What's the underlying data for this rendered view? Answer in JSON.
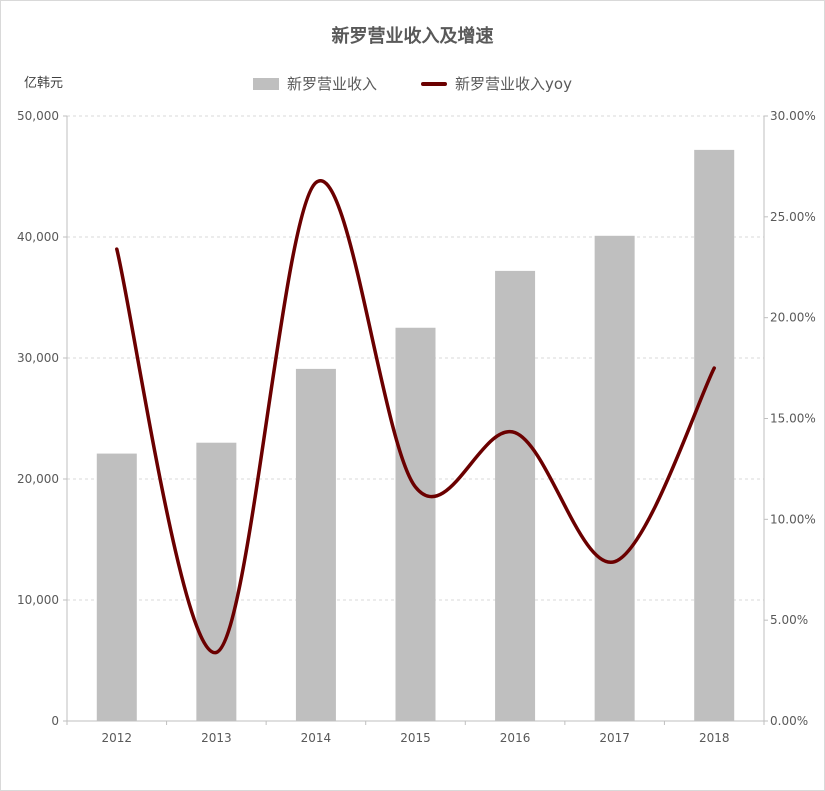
{
  "chart_data": {
    "type": "bar+line",
    "title": "新罗营业收入及增速",
    "ylabel_left": "亿韩元",
    "categories": [
      "2012",
      "2013",
      "2014",
      "2015",
      "2016",
      "2017",
      "2018"
    ],
    "series": [
      {
        "name": "新罗营业收入",
        "type": "bar",
        "axis": "left",
        "values": [
          22100,
          23000,
          29100,
          32500,
          37200,
          40100,
          47200
        ]
      },
      {
        "name": "新罗营业收入yoy",
        "type": "line",
        "axis": "right",
        "values": [
          23.4,
          3.4,
          26.7,
          11.6,
          14.3,
          7.9,
          17.5
        ]
      }
    ],
    "y_left": {
      "min": 0,
      "max": 50000,
      "ticks": [
        "0",
        "10,000",
        "20,000",
        "30,000",
        "40,000",
        "50,000"
      ]
    },
    "y_right": {
      "min": 0,
      "max": 30,
      "ticks": [
        "0.00%",
        "5.00%",
        "10.00%",
        "15.00%",
        "20.00%",
        "25.00%",
        "30.00%"
      ]
    },
    "grid": true,
    "legend_position": "top",
    "colors": {
      "bar": "#bfbfbf",
      "line": "#6b0000",
      "grid": "#d9d9d9"
    }
  }
}
